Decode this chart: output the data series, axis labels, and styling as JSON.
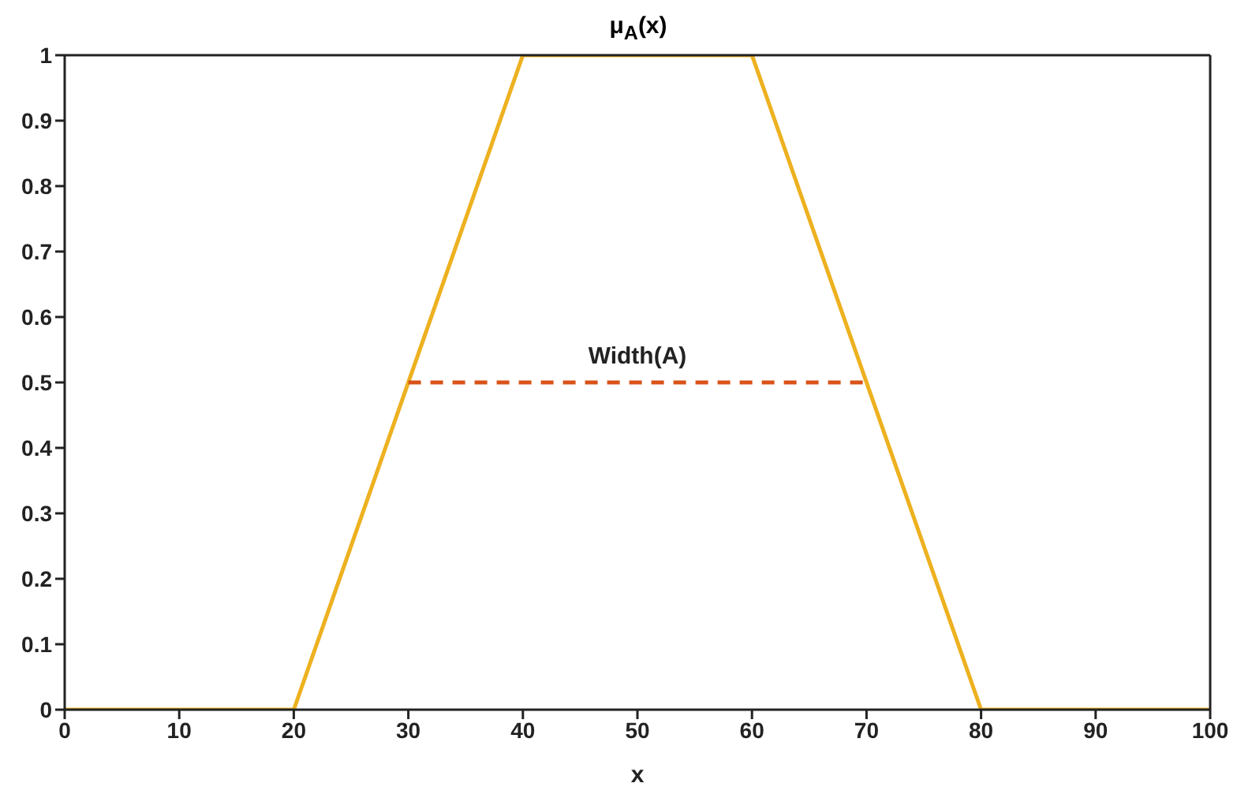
{
  "chart_data": {
    "type": "line",
    "title": "μ$_{A}$(x)",
    "xlabel": "x",
    "xlim": [
      0,
      100
    ],
    "xticks": [
      0,
      10,
      20,
      30,
      40,
      50,
      60,
      70,
      80,
      90,
      100
    ],
    "ylim": [
      0,
      1
    ],
    "yticks": [
      0,
      0.1,
      0.2,
      0.3,
      0.4,
      0.5,
      0.6,
      0.7,
      0.8,
      0.9,
      1
    ],
    "grid": false,
    "legend": false,
    "marker": "none",
    "series": [
      {
        "color": "#edb120",
        "x": [
          0,
          20,
          40,
          60,
          80,
          100
        ],
        "values": [
          0,
          0,
          1,
          1,
          0,
          0
        ],
        "line_style": "solid"
      },
      {
        "color": "#d95319",
        "x": [
          30,
          70
        ],
        "values": [
          0.5,
          0.5
        ],
        "line_style": "dashed"
      }
    ],
    "annotations": [
      {
        "text": "Width(A)",
        "x": 50,
        "y": 0.5
      }
    ]
  }
}
